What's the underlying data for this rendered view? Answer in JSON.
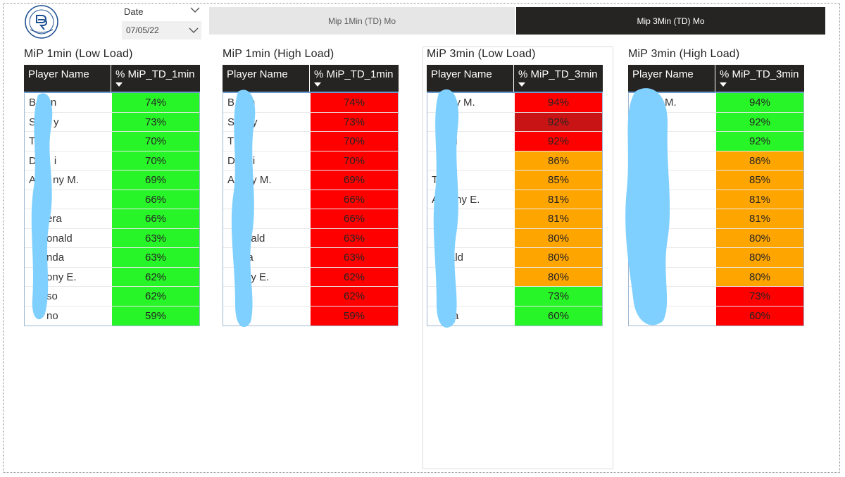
{
  "slicer": {
    "label": "Date",
    "value": "07/05/22"
  },
  "tabs": [
    {
      "label": "Mip 1Min (TD) Mo",
      "active": false
    },
    {
      "label": "Mip 3Min (TD) Mo",
      "active": true
    }
  ],
  "colors": {
    "green": "#28f528",
    "red": "#ff0000",
    "dark_red": "#c81414",
    "orange": "#ffa500",
    "header": "#252423"
  },
  "tables": [
    {
      "title": "MiP 1min (Low Load)",
      "col_name": "Player Name",
      "col_value": "% MiP_TD_1min",
      "rows": [
        {
          "name": "B     n",
          "value": "74%",
          "color": "green"
        },
        {
          "name": "S      y",
          "value": "73%",
          "color": "green"
        },
        {
          "name": "T",
          "value": "70%",
          "color": "green"
        },
        {
          "name": "D      i",
          "value": "70%",
          "color": "green"
        },
        {
          "name": "A      ny M.",
          "value": "69%",
          "color": "green"
        },
        {
          "name": "",
          "value": "66%",
          "color": "green"
        },
        {
          "name": "      era",
          "value": "66%",
          "color": "green"
        },
        {
          "name": "      onald",
          "value": "63%",
          "color": "green"
        },
        {
          "name": "      nda",
          "value": "63%",
          "color": "green"
        },
        {
          "name": "      ony E.",
          "value": "62%",
          "color": "green"
        },
        {
          "name": "      so",
          "value": "62%",
          "color": "green"
        },
        {
          "name": "      no",
          "value": "59%",
          "color": "green"
        }
      ]
    },
    {
      "title": "MiP 1min (High Load)",
      "col_name": "Player Name",
      "col_value": "% MiP_TD_1min",
      "rows": [
        {
          "name": "B     n",
          "value": "74%",
          "color": "red"
        },
        {
          "name": "S      y",
          "value": "73%",
          "color": "red"
        },
        {
          "name": "T",
          "value": "70%",
          "color": "red"
        },
        {
          "name": "D      i",
          "value": "70%",
          "color": "red"
        },
        {
          "name": "A      y M.",
          "value": "69%",
          "color": "red"
        },
        {
          "name": "",
          "value": "66%",
          "color": "red"
        },
        {
          "name": "      a",
          "value": "66%",
          "color": "red"
        },
        {
          "name": "      nald",
          "value": "63%",
          "color": "red"
        },
        {
          "name": "      la",
          "value": "63%",
          "color": "red"
        },
        {
          "name": "      ny E.",
          "value": "62%",
          "color": "red"
        },
        {
          "name": "",
          "value": "62%",
          "color": "red"
        },
        {
          "name": "      o",
          "value": "59%",
          "color": "red"
        }
      ]
    },
    {
      "title": "MiP 3min (Low Load)",
      "col_name": "Player Name",
      "col_value": "% MiP_TD_3min",
      "rows": [
        {
          "name": "      ny M.",
          "value": "94%",
          "color": "red"
        },
        {
          "name": "      n",
          "value": "92%",
          "color": "dark_red"
        },
        {
          "name": "      ui",
          "value": "92%",
          "color": "red"
        },
        {
          "name": "      n",
          "value": "86%",
          "color": "orange"
        },
        {
          "name": "T",
          "value": "85%",
          "color": "orange"
        },
        {
          "name": "A      ny E.",
          "value": "81%",
          "color": "orange"
        },
        {
          "name": "      a",
          "value": "81%",
          "color": "orange"
        },
        {
          "name": "",
          "value": "80%",
          "color": "orange"
        },
        {
          "name": "      ald",
          "value": "80%",
          "color": "orange"
        },
        {
          "name": "",
          "value": "80%",
          "color": "orange"
        },
        {
          "name": "",
          "value": "73%",
          "color": "green"
        },
        {
          "name": "      ra",
          "value": "60%",
          "color": "green"
        }
      ]
    },
    {
      "title": "MiP 3min (High Load)",
      "col_name": "Player Name",
      "col_value": "% MiP_TD_3min",
      "rows": [
        {
          "name": "      ny M.",
          "value": "94%",
          "color": "green"
        },
        {
          "name": "",
          "value": "92%",
          "color": "green"
        },
        {
          "name": "",
          "value": "92%",
          "color": "green"
        },
        {
          "name": "",
          "value": "86%",
          "color": "orange"
        },
        {
          "name": "",
          "value": "85%",
          "color": "orange"
        },
        {
          "name": "      E.",
          "value": "81%",
          "color": "orange"
        },
        {
          "name": "",
          "value": "81%",
          "color": "orange"
        },
        {
          "name": "",
          "value": "80%",
          "color": "orange"
        },
        {
          "name": "      ald",
          "value": "80%",
          "color": "orange"
        },
        {
          "name": "",
          "value": "80%",
          "color": "orange"
        },
        {
          "name": "",
          "value": "73%",
          "color": "red"
        },
        {
          "name": "      a",
          "value": "60%",
          "color": "red"
        }
      ]
    }
  ]
}
